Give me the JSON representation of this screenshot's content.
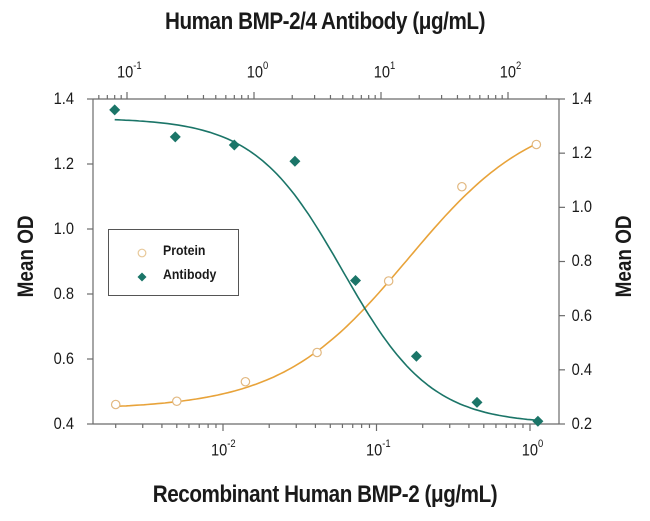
{
  "chart_data": {
    "type": "scatter",
    "title_top": "Human BMP-2/4 Antibody (μg/mL)",
    "title_bottom": "Recombinant Human BMP-2 (μg/mL)",
    "xlabel_bottom": "Recombinant Human BMP-2 (μg/mL)",
    "xlabel_top": "Human BMP-2/4 Antibody (μg/mL)",
    "ylabel_left": "Mean OD",
    "ylabel_right": "Mean OD",
    "x_scale": "log",
    "x_bottom_ticks": [
      "10^-2",
      "10^-1",
      "10^0"
    ],
    "x_top_ticks": [
      "10^-1",
      "10^0",
      "10^1",
      "10^2"
    ],
    "y_left_ticks": [
      "1.4",
      "1.2",
      "1.0",
      "0.8",
      "0.6",
      "0.4"
    ],
    "y_right_ticks": [
      "1.4",
      "1.2",
      "1.0",
      "0.8",
      "0.6",
      "0.4",
      "0.2"
    ],
    "y_left_range": [
      0.4,
      1.4
    ],
    "y_right_range": [
      0.2,
      1.4
    ],
    "grid": false,
    "legend_position": "left-middle",
    "series": [
      {
        "name": "Protein",
        "marker": "open-circle",
        "color": "#e8a33a",
        "x_axis": "bottom",
        "y_axis": "left",
        "x": [
          0.002,
          0.005,
          0.014,
          0.041,
          0.12,
          0.36,
          1.1
        ],
        "y": [
          0.46,
          0.47,
          0.53,
          0.62,
          0.84,
          1.13,
          1.26
        ],
        "fit": "4-parameter logistic (increasing)"
      },
      {
        "name": "Antibody",
        "marker": "filled-diamond",
        "color": "#1b7568",
        "x_axis": "top",
        "y_axis": "right",
        "x": [
          0.08,
          0.24,
          0.7,
          2.1,
          6.3,
          19,
          57,
          172
        ],
        "y": [
          1.36,
          1.26,
          1.23,
          1.17,
          0.73,
          0.45,
          0.28,
          0.21
        ],
        "fit": "4-parameter logistic (decreasing)"
      }
    ]
  },
  "colors": {
    "protein": "#e8a33a",
    "antibody": "#1b7568",
    "axis": "#6b6b6b"
  },
  "legend": {
    "items": [
      {
        "label": "Protein",
        "icon": "open-circle-icon"
      },
      {
        "label": "Antibody",
        "icon": "filled-diamond-icon"
      }
    ]
  },
  "axes": {
    "y_left_labels": [
      "1.4",
      "1.2",
      "1.0",
      "0.8",
      "0.6",
      "0.4"
    ],
    "y_right_labels": [
      "1.4",
      "1.2",
      "1.0",
      "0.8",
      "0.6",
      "0.4",
      "0.2"
    ],
    "x_bottom_labels": [
      {
        "base": "10",
        "exp": "-2"
      },
      {
        "base": "10",
        "exp": "-1"
      },
      {
        "base": "10",
        "exp": "0"
      }
    ],
    "x_top_labels": [
      {
        "base": "10",
        "exp": "-1"
      },
      {
        "base": "10",
        "exp": "0"
      },
      {
        "base": "10",
        "exp": "1"
      },
      {
        "base": "10",
        "exp": "2"
      }
    ]
  }
}
